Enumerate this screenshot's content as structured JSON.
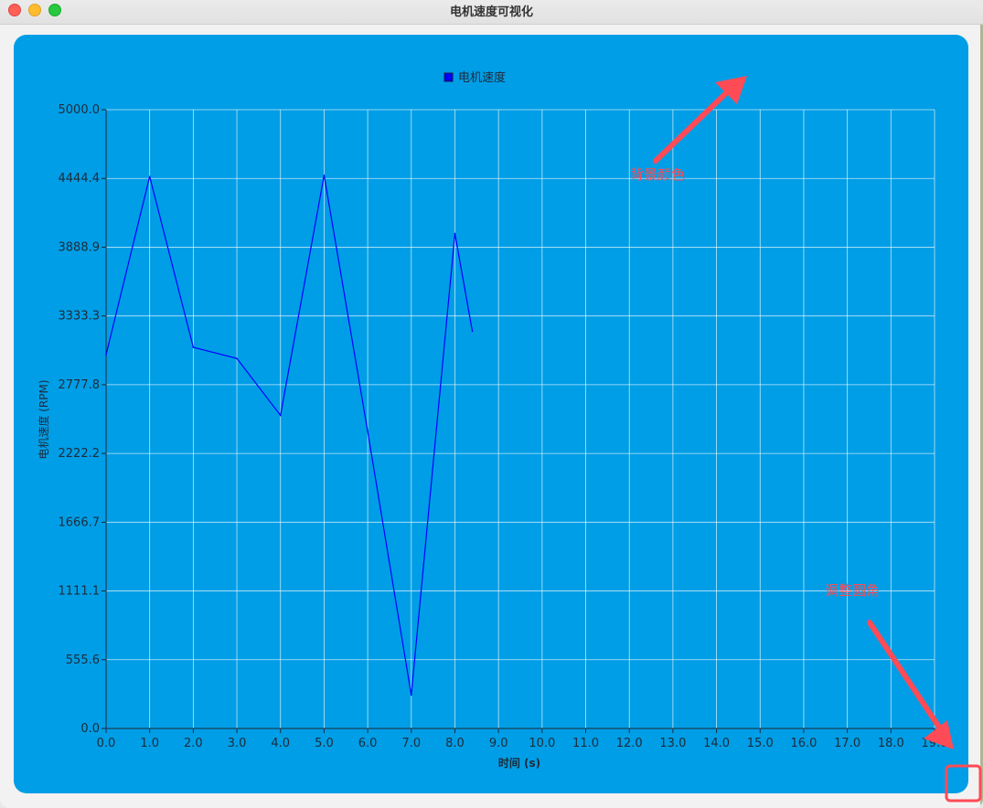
{
  "window": {
    "title": "电机速度可视化"
  },
  "colors": {
    "chart_bg": "#009ee6",
    "series": "#0000ff",
    "grid": "#ffffff",
    "annotation": "#ff4b55"
  },
  "chart_data": {
    "type": "line",
    "title": "",
    "xlabel": "时间 (s)",
    "ylabel": "电机速度 (RPM)",
    "xlim": [
      0,
      19
    ],
    "ylim": [
      0,
      5000
    ],
    "xticks": [
      "0.0",
      "1.0",
      "2.0",
      "3.0",
      "4.0",
      "5.0",
      "6.0",
      "7.0",
      "8.0",
      "9.0",
      "10.0",
      "11.0",
      "12.0",
      "13.0",
      "14.0",
      "15.0",
      "16.0",
      "17.0",
      "18.0",
      "19.0"
    ],
    "yticks": [
      "0.0",
      "555.6",
      "1111.1",
      "1666.7",
      "2222.2",
      "2777.8",
      "3333.3",
      "3888.9",
      "4444.4",
      "5000.0"
    ],
    "grid": true,
    "legend_position": "top-center",
    "series": [
      {
        "name": "电机速度",
        "x": [
          0,
          1,
          2,
          3,
          4,
          5,
          6,
          7,
          8,
          8.4
        ],
        "y": [
          3020,
          4460,
          3080,
          2990,
          2530,
          4470,
          2400,
          270,
          4000,
          3210
        ]
      }
    ]
  },
  "annotations": {
    "bg_color_label": "背景颜色",
    "corner_label": "调整圆角"
  }
}
